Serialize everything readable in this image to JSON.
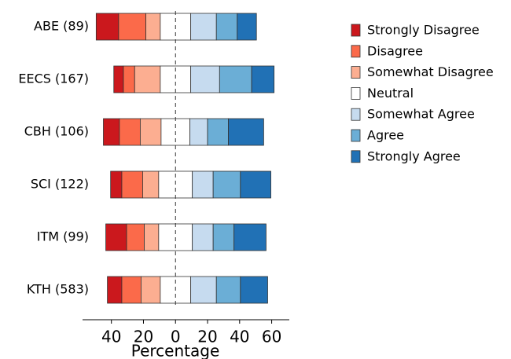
{
  "chart_data": {
    "type": "diverging-bar",
    "categories": [
      "ABE (89)",
      "EECS (167)",
      "CBH (106)",
      "SCI (122)",
      "ITM (99)",
      "KTH (583)"
    ],
    "series": [
      {
        "name": "Strongly Disagree",
        "color": "#cb181d",
        "values": [
          14,
          6,
          10,
          7,
          13,
          9
        ]
      },
      {
        "name": "Disagree",
        "color": "#fb6a4a",
        "values": [
          17,
          7,
          13,
          13,
          11,
          12
        ]
      },
      {
        "name": "Somewhat Disagree",
        "color": "#fcae91",
        "values": [
          9,
          16,
          13,
          10,
          9,
          12
        ]
      },
      {
        "name": "Neutral",
        "color": "#ffffff",
        "values": [
          19,
          19,
          18,
          21,
          21,
          19
        ]
      },
      {
        "name": "Somewhat Agree",
        "color": "#c6dbef",
        "values": [
          16,
          18,
          11,
          13,
          13,
          16
        ]
      },
      {
        "name": "Agree",
        "color": "#6baed6",
        "values": [
          13,
          20,
          13,
          17,
          13,
          15
        ]
      },
      {
        "name": "Strongly Agree",
        "color": "#2171b5",
        "values": [
          12,
          14,
          22,
          19,
          20,
          17
        ]
      }
    ],
    "xlabel": "Percentage",
    "xlim": [
      -58,
      71
    ],
    "xticks": [
      {
        "value": -40,
        "label": "40"
      },
      {
        "value": -20,
        "label": "20"
      },
      0,
      20,
      40,
      60
    ],
    "legend": "right"
  }
}
